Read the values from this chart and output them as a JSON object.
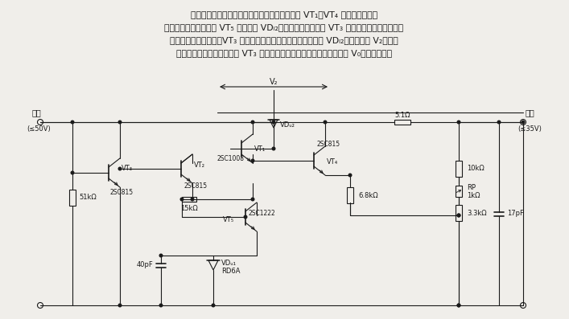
{
  "background_color": "#f0eeea",
  "line_color": "#1a1a1a",
  "text_color": "#1a1a1a",
  "gray_color": "#555555",
  "text_lines": [
    "不受输入电压变动影响的稳压电源电路。电路由 VT₁～VT₄ 构成基本稳压电",
    "路。另外，增设晶体管 VT₅ 和稳压管 VDₗ₂，使误差放大晶体管 VT₃ 的集电极电压稳定，减少",
    "输入电压变动的影响。VT₃ 的基极电压等于输出电压加上稳压管 VDₗ₂的稳定电压 V₂，即使",
    "集电极电压变动，不会影响 VT₃ 的发射极。但直流输入电压一定要高于 V₀，效率降低。"
  ]
}
